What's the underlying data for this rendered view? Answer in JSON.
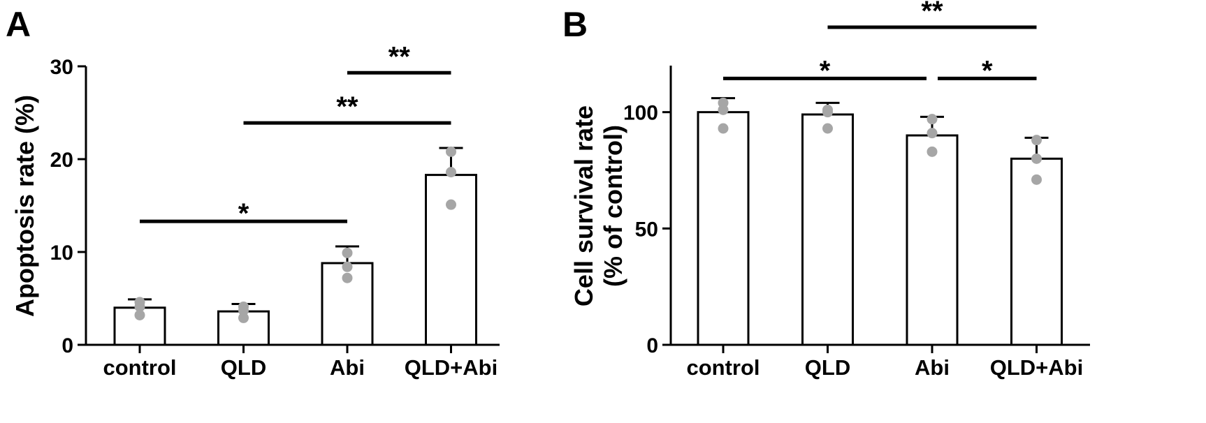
{
  "colors": {
    "axis": "#000000",
    "bar_fill": "#ffffff",
    "dots": "#a6a6a6"
  },
  "chart_data": [
    {
      "panel": "A",
      "type": "bar",
      "categories": [
        "control",
        "QLD",
        "Abi",
        "QLD+Abi"
      ],
      "values": [
        4.0,
        3.6,
        8.8,
        18.3
      ],
      "error_upper": [
        4.9,
        4.4,
        10.6,
        21.2
      ],
      "points": [
        [
          4.6,
          3.2,
          4.1
        ],
        [
          4.1,
          2.9,
          3.7
        ],
        [
          8.4,
          7.2,
          9.9
        ],
        [
          20.8,
          18.6,
          15.1
        ]
      ],
      "ylabel": "Apoptosis rate (%)",
      "ylim": [
        0,
        30
      ],
      "yticks": [
        "0",
        "10",
        "20",
        "30"
      ],
      "significance": [
        {
          "from": 0,
          "to": 2,
          "label": "*",
          "y": 13.3
        },
        {
          "from": 1,
          "to": 3,
          "label": "**",
          "y": 23.9
        },
        {
          "from": 2,
          "to": 3,
          "label": "**",
          "y": 29.3
        }
      ]
    },
    {
      "panel": "B",
      "type": "bar",
      "categories": [
        "control",
        "QLD",
        "Abi",
        "QLD+Abi"
      ],
      "values": [
        100,
        99,
        90,
        80
      ],
      "error_upper": [
        106,
        104,
        98,
        89
      ],
      "points": [
        [
          104,
          93,
          101
        ],
        [
          101,
          93,
          100
        ],
        [
          97,
          83,
          91
        ],
        [
          88,
          71,
          80
        ]
      ],
      "ylabel": [
        "Cell survival rate",
        "(% of control)"
      ],
      "ylim": [
        0,
        120
      ],
      "yticks": [
        "0",
        "50",
        "100"
      ],
      "significance": [
        {
          "from": 0,
          "to": 2,
          "label": "*",
          "y": 114.5
        },
        {
          "from": 2,
          "to": 3,
          "label": "*",
          "y": 114.5
        },
        {
          "from": 1,
          "to": 3,
          "label": "**",
          "y": 136.5
        }
      ]
    }
  ]
}
